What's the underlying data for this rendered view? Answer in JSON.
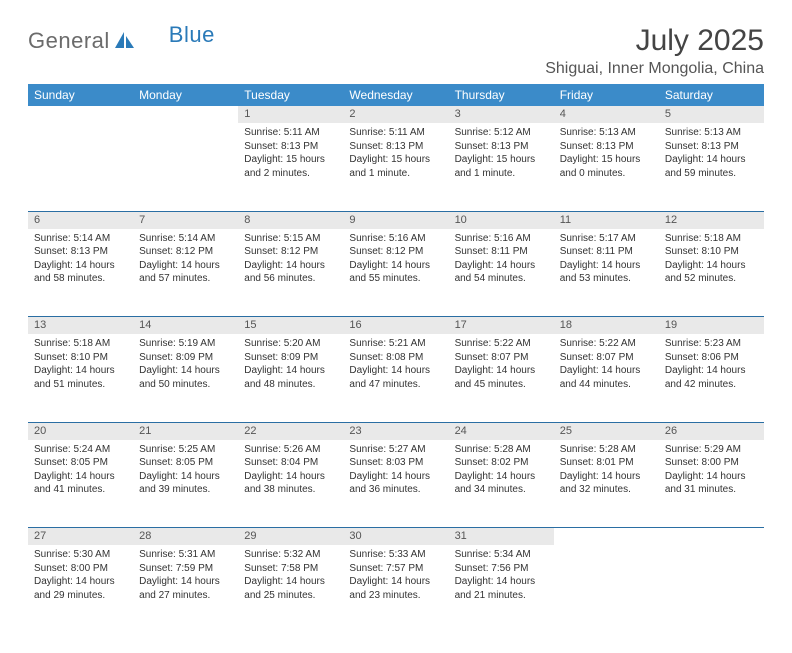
{
  "logo": {
    "text1": "General",
    "text2": "Blue"
  },
  "title": "July 2025",
  "location": "Shiguai, Inner Mongolia, China",
  "colors": {
    "header_bg": "#3b8bc9",
    "header_text": "#ffffff",
    "daynum_bg": "#e9e9e9",
    "border": "#2a6ea3",
    "logo_gray": "#6b6b6b",
    "logo_blue": "#2a7ab8"
  },
  "day_headers": [
    "Sunday",
    "Monday",
    "Tuesday",
    "Wednesday",
    "Thursday",
    "Friday",
    "Saturday"
  ],
  "weeks": [
    [
      {
        "num": "",
        "lines": []
      },
      {
        "num": "",
        "lines": []
      },
      {
        "num": "1",
        "lines": [
          "Sunrise: 5:11 AM",
          "Sunset: 8:13 PM",
          "Daylight: 15 hours",
          "and 2 minutes."
        ]
      },
      {
        "num": "2",
        "lines": [
          "Sunrise: 5:11 AM",
          "Sunset: 8:13 PM",
          "Daylight: 15 hours",
          "and 1 minute."
        ]
      },
      {
        "num": "3",
        "lines": [
          "Sunrise: 5:12 AM",
          "Sunset: 8:13 PM",
          "Daylight: 15 hours",
          "and 1 minute."
        ]
      },
      {
        "num": "4",
        "lines": [
          "Sunrise: 5:13 AM",
          "Sunset: 8:13 PM",
          "Daylight: 15 hours",
          "and 0 minutes."
        ]
      },
      {
        "num": "5",
        "lines": [
          "Sunrise: 5:13 AM",
          "Sunset: 8:13 PM",
          "Daylight: 14 hours",
          "and 59 minutes."
        ]
      }
    ],
    [
      {
        "num": "6",
        "lines": [
          "Sunrise: 5:14 AM",
          "Sunset: 8:13 PM",
          "Daylight: 14 hours",
          "and 58 minutes."
        ]
      },
      {
        "num": "7",
        "lines": [
          "Sunrise: 5:14 AM",
          "Sunset: 8:12 PM",
          "Daylight: 14 hours",
          "and 57 minutes."
        ]
      },
      {
        "num": "8",
        "lines": [
          "Sunrise: 5:15 AM",
          "Sunset: 8:12 PM",
          "Daylight: 14 hours",
          "and 56 minutes."
        ]
      },
      {
        "num": "9",
        "lines": [
          "Sunrise: 5:16 AM",
          "Sunset: 8:12 PM",
          "Daylight: 14 hours",
          "and 55 minutes."
        ]
      },
      {
        "num": "10",
        "lines": [
          "Sunrise: 5:16 AM",
          "Sunset: 8:11 PM",
          "Daylight: 14 hours",
          "and 54 minutes."
        ]
      },
      {
        "num": "11",
        "lines": [
          "Sunrise: 5:17 AM",
          "Sunset: 8:11 PM",
          "Daylight: 14 hours",
          "and 53 minutes."
        ]
      },
      {
        "num": "12",
        "lines": [
          "Sunrise: 5:18 AM",
          "Sunset: 8:10 PM",
          "Daylight: 14 hours",
          "and 52 minutes."
        ]
      }
    ],
    [
      {
        "num": "13",
        "lines": [
          "Sunrise: 5:18 AM",
          "Sunset: 8:10 PM",
          "Daylight: 14 hours",
          "and 51 minutes."
        ]
      },
      {
        "num": "14",
        "lines": [
          "Sunrise: 5:19 AM",
          "Sunset: 8:09 PM",
          "Daylight: 14 hours",
          "and 50 minutes."
        ]
      },
      {
        "num": "15",
        "lines": [
          "Sunrise: 5:20 AM",
          "Sunset: 8:09 PM",
          "Daylight: 14 hours",
          "and 48 minutes."
        ]
      },
      {
        "num": "16",
        "lines": [
          "Sunrise: 5:21 AM",
          "Sunset: 8:08 PM",
          "Daylight: 14 hours",
          "and 47 minutes."
        ]
      },
      {
        "num": "17",
        "lines": [
          "Sunrise: 5:22 AM",
          "Sunset: 8:07 PM",
          "Daylight: 14 hours",
          "and 45 minutes."
        ]
      },
      {
        "num": "18",
        "lines": [
          "Sunrise: 5:22 AM",
          "Sunset: 8:07 PM",
          "Daylight: 14 hours",
          "and 44 minutes."
        ]
      },
      {
        "num": "19",
        "lines": [
          "Sunrise: 5:23 AM",
          "Sunset: 8:06 PM",
          "Daylight: 14 hours",
          "and 42 minutes."
        ]
      }
    ],
    [
      {
        "num": "20",
        "lines": [
          "Sunrise: 5:24 AM",
          "Sunset: 8:05 PM",
          "Daylight: 14 hours",
          "and 41 minutes."
        ]
      },
      {
        "num": "21",
        "lines": [
          "Sunrise: 5:25 AM",
          "Sunset: 8:05 PM",
          "Daylight: 14 hours",
          "and 39 minutes."
        ]
      },
      {
        "num": "22",
        "lines": [
          "Sunrise: 5:26 AM",
          "Sunset: 8:04 PM",
          "Daylight: 14 hours",
          "and 38 minutes."
        ]
      },
      {
        "num": "23",
        "lines": [
          "Sunrise: 5:27 AM",
          "Sunset: 8:03 PM",
          "Daylight: 14 hours",
          "and 36 minutes."
        ]
      },
      {
        "num": "24",
        "lines": [
          "Sunrise: 5:28 AM",
          "Sunset: 8:02 PM",
          "Daylight: 14 hours",
          "and 34 minutes."
        ]
      },
      {
        "num": "25",
        "lines": [
          "Sunrise: 5:28 AM",
          "Sunset: 8:01 PM",
          "Daylight: 14 hours",
          "and 32 minutes."
        ]
      },
      {
        "num": "26",
        "lines": [
          "Sunrise: 5:29 AM",
          "Sunset: 8:00 PM",
          "Daylight: 14 hours",
          "and 31 minutes."
        ]
      }
    ],
    [
      {
        "num": "27",
        "lines": [
          "Sunrise: 5:30 AM",
          "Sunset: 8:00 PM",
          "Daylight: 14 hours",
          "and 29 minutes."
        ]
      },
      {
        "num": "28",
        "lines": [
          "Sunrise: 5:31 AM",
          "Sunset: 7:59 PM",
          "Daylight: 14 hours",
          "and 27 minutes."
        ]
      },
      {
        "num": "29",
        "lines": [
          "Sunrise: 5:32 AM",
          "Sunset: 7:58 PM",
          "Daylight: 14 hours",
          "and 25 minutes."
        ]
      },
      {
        "num": "30",
        "lines": [
          "Sunrise: 5:33 AM",
          "Sunset: 7:57 PM",
          "Daylight: 14 hours",
          "and 23 minutes."
        ]
      },
      {
        "num": "31",
        "lines": [
          "Sunrise: 5:34 AM",
          "Sunset: 7:56 PM",
          "Daylight: 14 hours",
          "and 21 minutes."
        ]
      },
      {
        "num": "",
        "lines": []
      },
      {
        "num": "",
        "lines": []
      }
    ]
  ]
}
